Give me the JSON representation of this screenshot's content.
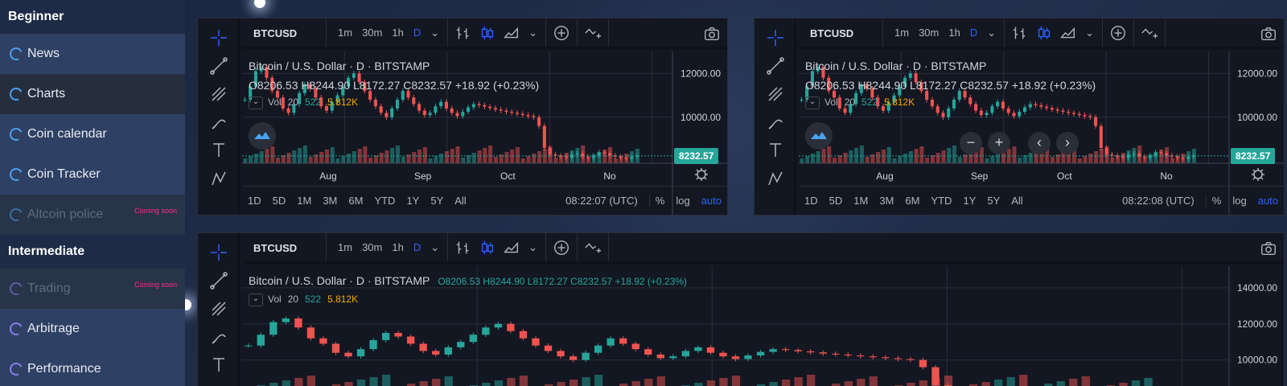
{
  "sidebar": {
    "sections": [
      {
        "title": "Beginner",
        "items": [
          {
            "label": "News"
          },
          {
            "label": "Charts"
          },
          {
            "label": "Coin calendar"
          },
          {
            "label": "Coin Tracker"
          },
          {
            "label": "Altcoin police",
            "badge": "Coming soon"
          }
        ]
      },
      {
        "title": "Intermediate",
        "items": [
          {
            "label": "Trading",
            "badge": "Coming soon"
          },
          {
            "label": "Arbitrage"
          },
          {
            "label": "Performance"
          }
        ]
      }
    ]
  },
  "colors": {
    "up": "#26a69a",
    "down": "#ef5350",
    "accent": "#2962ff",
    "badge": "#ff2a7f"
  },
  "chart_widgets": [
    {
      "symbol": "BTCUSD",
      "timeframes": [
        "1m",
        "30m",
        "1h",
        "D"
      ],
      "selected_timeframe": "D",
      "title": "Bitcoin / U.S. Dollar · D · BITSTAMP",
      "ohlc": "O8206.53  H8244.90  L8172.27  C8232.57  +18.92 (+0.23%)",
      "vol_label": "Vol",
      "vol_period": "20",
      "vol_value1": "522",
      "vol_value2": "5.812K",
      "price_ticks": [
        "12000.00",
        "10000.00"
      ],
      "last_price": "8232.57",
      "time_ticks": [
        "Aug",
        "Sep",
        "Oct",
        "No"
      ],
      "ranges": [
        "1D",
        "5D",
        "1M",
        "3M",
        "6M",
        "YTD",
        "1Y",
        "5Y",
        "All"
      ],
      "clock": "08:22:07 (UTC)",
      "scale_opts": [
        "%",
        "log",
        "auto"
      ]
    },
    {
      "symbol": "BTCUSD",
      "timeframes": [
        "1m",
        "30m",
        "1h",
        "D"
      ],
      "selected_timeframe": "D",
      "title": "Bitcoin / U.S. Dollar · D · BITSTAMP",
      "ohlc": "O8206.53  H8244.90  L8172.27  C8232.57  +18.92 (+0.23%)",
      "vol_label": "Vol",
      "vol_period": "20",
      "vol_value1": "522",
      "vol_value2": "5.812K",
      "price_ticks": [
        "12000.00",
        "10000.00"
      ],
      "last_price": "8232.57",
      "time_ticks": [
        "Aug",
        "Sep",
        "Oct",
        "No"
      ],
      "ranges": [
        "1D",
        "5D",
        "1M",
        "3M",
        "6M",
        "YTD",
        "1Y",
        "5Y",
        "All"
      ],
      "clock": "08:22:08 (UTC)",
      "scale_opts": [
        "%",
        "log",
        "auto"
      ]
    },
    {
      "symbol": "BTCUSD",
      "timeframes": [
        "1m",
        "30m",
        "1h",
        "D"
      ],
      "selected_timeframe": "D",
      "title": "Bitcoin / U.S. Dollar · D · BITSTAMP",
      "ohlc": "O8206.53  H8244.90  L8172.27  C8232.57  +18.92 (+0.23%)",
      "vol_label": "Vol",
      "vol_period": "20",
      "vol_value1": "522",
      "vol_value2": "5.812K",
      "price_ticks": [
        "14000.00",
        "12000.00",
        "10000.00"
      ]
    }
  ],
  "price_series": [
    10800,
    11400,
    12100,
    12300,
    11800,
    11200,
    10900,
    10400,
    10200,
    10600,
    11100,
    11500,
    11300,
    10900,
    10500,
    10300,
    10700,
    11000,
    11400,
    11800,
    12000,
    11600,
    11200,
    10800,
    10500,
    10200,
    10000,
    10400,
    10800,
    11200,
    10900,
    10600,
    10300,
    10100,
    10200,
    10500,
    10700,
    10400,
    10200,
    10050,
    10250,
    10450,
    10600,
    10550,
    10480,
    10420,
    10350,
    10300,
    10250,
    10200,
    10150,
    10100,
    10050,
    10000,
    9600,
    8600,
    8300,
    8250,
    8200,
    8150,
    8300,
    8350,
    8200,
    8150,
    8250,
    8400,
    8350,
    8250,
    8200,
    8150,
    8100,
    8200,
    8230
  ]
}
